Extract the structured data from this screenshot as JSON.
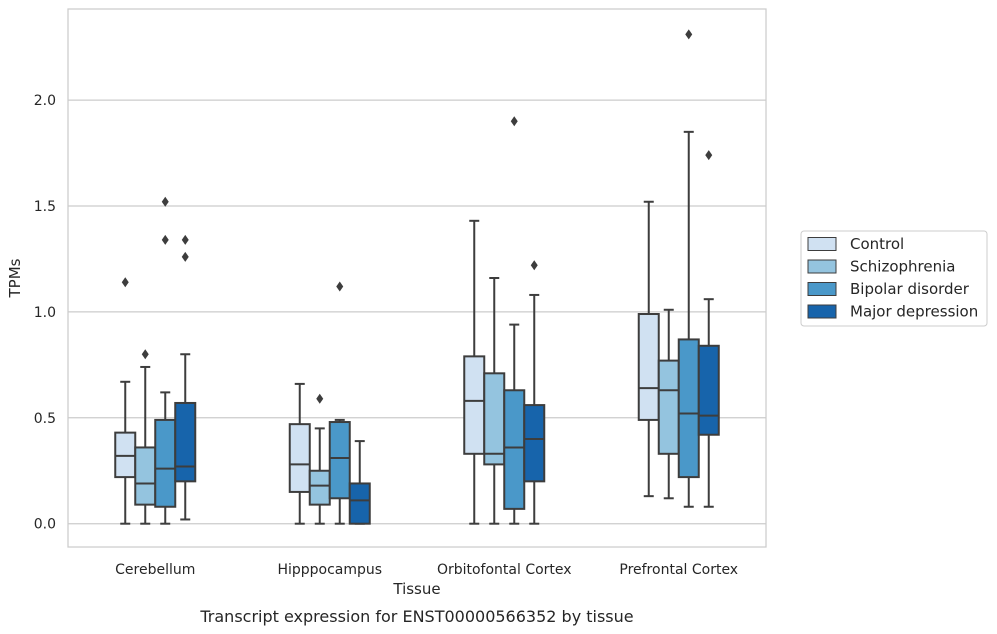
{
  "chart_data": {
    "type": "box",
    "xlabel": "Tissue",
    "ylabel": "TPMs",
    "caption": "Transcript expression for ENST00000566352 by tissue",
    "ylim": [
      -0.11,
      2.43
    ],
    "yticks": [
      0.0,
      0.5,
      1.0,
      1.5,
      2.0
    ],
    "ytick_labels": [
      "0.0",
      "0.5",
      "1.0",
      "1.5",
      "2.0"
    ],
    "grid": "horizontal",
    "legend_position": "right",
    "categories": [
      "Cerebellum",
      "Hipppocampus",
      "Orbitofontal Cortex",
      "Prefrontal Cortex"
    ],
    "series": [
      {
        "name": "Control",
        "color": "#d0e1f2",
        "boxes": [
          {
            "whislo": 0.0,
            "q1": 0.22,
            "med": 0.32,
            "q3": 0.43,
            "whishi": 0.67,
            "fliers": [
              1.14
            ]
          },
          {
            "whislo": 0.0,
            "q1": 0.15,
            "med": 0.28,
            "q3": 0.47,
            "whishi": 0.66,
            "fliers": []
          },
          {
            "whislo": 0.0,
            "q1": 0.33,
            "med": 0.58,
            "q3": 0.79,
            "whishi": 1.43,
            "fliers": []
          },
          {
            "whislo": 0.13,
            "q1": 0.49,
            "med": 0.64,
            "q3": 0.99,
            "whishi": 1.52,
            "fliers": []
          }
        ]
      },
      {
        "name": "Schizophrenia",
        "color": "#94c4df",
        "boxes": [
          {
            "whislo": 0.0,
            "q1": 0.09,
            "med": 0.19,
            "q3": 0.36,
            "whishi": 0.74,
            "fliers": [
              0.8
            ]
          },
          {
            "whislo": 0.0,
            "q1": 0.09,
            "med": 0.18,
            "q3": 0.25,
            "whishi": 0.45,
            "fliers": [
              0.59
            ]
          },
          {
            "whislo": 0.0,
            "q1": 0.28,
            "med": 0.33,
            "q3": 0.71,
            "whishi": 1.16,
            "fliers": []
          },
          {
            "whislo": 0.12,
            "q1": 0.33,
            "med": 0.63,
            "q3": 0.77,
            "whishi": 1.01,
            "fliers": []
          }
        ]
      },
      {
        "name": "Bipolar disorder",
        "color": "#4a98c9",
        "boxes": [
          {
            "whislo": 0.0,
            "q1": 0.08,
            "med": 0.26,
            "q3": 0.49,
            "whishi": 0.62,
            "fliers": [
              1.34,
              1.52
            ]
          },
          {
            "whislo": 0.0,
            "q1": 0.12,
            "med": 0.31,
            "q3": 0.48,
            "whishi": 0.49,
            "fliers": [
              1.12
            ]
          },
          {
            "whislo": 0.0,
            "q1": 0.07,
            "med": 0.36,
            "q3": 0.63,
            "whishi": 0.94,
            "fliers": [
              1.9
            ]
          },
          {
            "whislo": 0.08,
            "q1": 0.22,
            "med": 0.52,
            "q3": 0.87,
            "whishi": 1.85,
            "fliers": [
              2.31
            ]
          }
        ]
      },
      {
        "name": "Major depression",
        "color": "#1764ab",
        "boxes": [
          {
            "whislo": 0.02,
            "q1": 0.2,
            "med": 0.27,
            "q3": 0.57,
            "whishi": 0.8,
            "fliers": [
              1.26,
              1.34
            ]
          },
          {
            "whislo": 0.0,
            "q1": 0.0,
            "med": 0.11,
            "q3": 0.19,
            "whishi": 0.39,
            "fliers": []
          },
          {
            "whislo": 0.0,
            "q1": 0.2,
            "med": 0.4,
            "q3": 0.56,
            "whishi": 1.08,
            "fliers": [
              1.22
            ]
          },
          {
            "whislo": 0.08,
            "q1": 0.42,
            "med": 0.51,
            "q3": 0.84,
            "whishi": 1.06,
            "fliers": [
              1.74
            ]
          }
        ]
      }
    ]
  }
}
